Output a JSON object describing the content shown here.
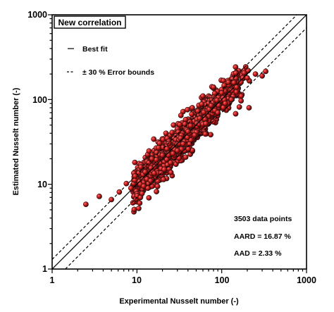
{
  "chart_data": {
    "type": "scatter",
    "title": "",
    "xlabel": "Experimental Nusselt number (-)",
    "ylabel": "Estimated Nusselt number (-)",
    "xscale": "log",
    "yscale": "log",
    "xlim": [
      1,
      1000
    ],
    "ylim": [
      1,
      1000
    ],
    "xticks": [
      1,
      10,
      100,
      1000
    ],
    "yticks": [
      1,
      10,
      100,
      1000
    ],
    "xtick_labels": [
      "1",
      "10",
      "100",
      "1000"
    ],
    "ytick_labels": [
      "1",
      "10",
      "100",
      "1000"
    ],
    "grid": false,
    "box_label": "New correlation",
    "legend": {
      "placement": "top-left",
      "entries": [
        {
          "label": "Best fit",
          "style": "solid"
        },
        {
          "label": "± 30 % Error bounds",
          "style": "dashed"
        }
      ]
    },
    "annotations": [
      "3503 data points",
      "AARD = 16.87 %",
      "AAD = 2.33 %"
    ],
    "lines": [
      {
        "name": "Best fit",
        "style": "solid",
        "points": [
          [
            1,
            1
          ],
          [
            1000,
            1000
          ]
        ]
      },
      {
        "name": "+30 %",
        "style": "dashed",
        "points": [
          [
            1,
            1.3
          ],
          [
            769,
            1000
          ]
        ]
      },
      {
        "name": "-30 %",
        "style": "dashed",
        "points": [
          [
            1.43,
            1
          ],
          [
            1000,
            700
          ]
        ]
      }
    ],
    "marker_color": "#c41414",
    "marker_edge": "#1a1a1a",
    "series": [
      {
        "points": [
          [
            2.5,
            5.8
          ],
          [
            3.6,
            7.2
          ],
          [
            5.0,
            6.6
          ],
          [
            6.2,
            8.1
          ],
          [
            7.5,
            10.2
          ],
          [
            8.5,
            9.0
          ],
          [
            9.5,
            12.5
          ],
          [
            10.5,
            5.2
          ],
          [
            10.8,
            6.0
          ],
          [
            11.0,
            7.0
          ],
          [
            11.5,
            7.8
          ],
          [
            12.0,
            9.5
          ],
          [
            12.5,
            14.0
          ],
          [
            13.5,
            9.0
          ],
          [
            14.5,
            11.0
          ],
          [
            15.0,
            20.0
          ],
          [
            16.0,
            13.5
          ],
          [
            17.0,
            8.2
          ],
          [
            18.0,
            27.0
          ],
          [
            20.0,
            22.0
          ],
          [
            21.0,
            15.0
          ],
          [
            22.0,
            40.0
          ],
          [
            25.0,
            18.0
          ],
          [
            27.0,
            50.0
          ],
          [
            30.0,
            25.0
          ],
          [
            33.0,
            65.0
          ],
          [
            35.0,
            30.0
          ],
          [
            40.0,
            42.0
          ],
          [
            45.0,
            80.0
          ],
          [
            48.0,
            38.0
          ],
          [
            55.0,
            60.0
          ],
          [
            60.0,
            110.0
          ],
          [
            65.0,
            52.0
          ],
          [
            75.0,
            85.0
          ],
          [
            80.0,
            140.0
          ],
          [
            90.0,
            70.0
          ],
          [
            100.0,
            120.0
          ],
          [
            110.0,
            90.0
          ],
          [
            120.0,
            160.0
          ],
          [
            130.0,
            100.0
          ],
          [
            150.0,
            140.0
          ],
          [
            170.0,
            110.0
          ],
          [
            200.0,
            180.0
          ],
          [
            210.0,
            80.0
          ],
          [
            250.0,
            200.0
          ],
          [
            300.0,
            190.0
          ],
          [
            330.0,
            215.0
          ]
        ]
      }
    ]
  }
}
